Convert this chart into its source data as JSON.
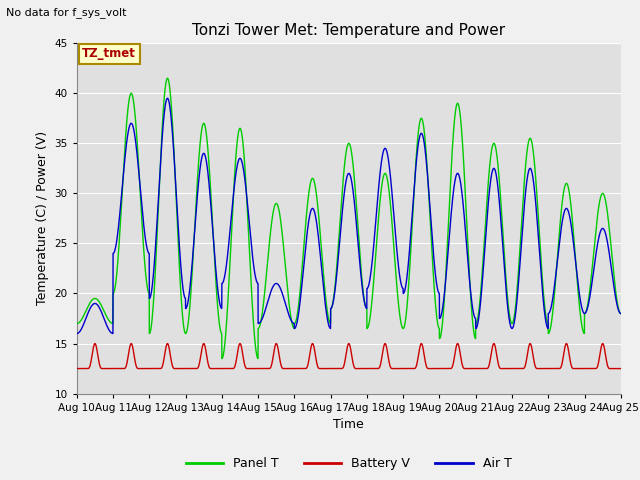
{
  "title": "Tonzi Tower Met: Temperature and Power",
  "top_left_text": "No data for f_sys_volt",
  "xlabel": "Time",
  "ylabel": "Temperature (C) / Power (V)",
  "ylim": [
    10,
    45
  ],
  "yticks": [
    10,
    15,
    20,
    25,
    30,
    35,
    40,
    45
  ],
  "n_days": 15,
  "xtick_labels": [
    "Aug 10",
    "Aug 11",
    "Aug 12",
    "Aug 13",
    "Aug 14",
    "Aug 15",
    "Aug 16",
    "Aug 17",
    "Aug 18",
    "Aug 19",
    "Aug 20",
    "Aug 21",
    "Aug 22",
    "Aug 23",
    "Aug 24",
    "Aug 25"
  ],
  "annotation_text": "TZ_tmet",
  "annotation_box_facecolor": "#ffffcc",
  "annotation_box_edgecolor": "#aa8800",
  "annotation_text_color": "#aa0000",
  "panel_color": "#00cc00",
  "battery_color": "#cc0000",
  "air_color": "#0000cc",
  "fig_facecolor": "#f0f0f0",
  "plot_bg_color": "#e0e0e0",
  "grid_color": "#ffffff",
  "panel_day_peaks": [
    19.5,
    40.0,
    41.5,
    37.0,
    36.5,
    29.0,
    31.5,
    35.0,
    32.0,
    37.5,
    39.0,
    35.0,
    35.5,
    31.0,
    30.0
  ],
  "panel_day_troughs": [
    17.0,
    20.0,
    16.0,
    16.0,
    13.5,
    16.5,
    17.0,
    18.5,
    16.5,
    16.5,
    15.5,
    17.0,
    17.0,
    16.0,
    18.0
  ],
  "air_day_peaks": [
    19.0,
    37.0,
    39.5,
    34.0,
    33.5,
    21.0,
    28.5,
    32.0,
    34.5,
    36.0,
    32.0,
    32.5,
    32.5,
    28.5,
    26.5
  ],
  "air_day_troughs": [
    16.0,
    24.0,
    19.5,
    18.5,
    21.0,
    17.0,
    16.5,
    18.5,
    20.5,
    20.0,
    17.5,
    16.5,
    16.5,
    18.0,
    18.0
  ],
  "battery_base": 12.5,
  "battery_peak": 15.0,
  "linewidth": 1.0
}
